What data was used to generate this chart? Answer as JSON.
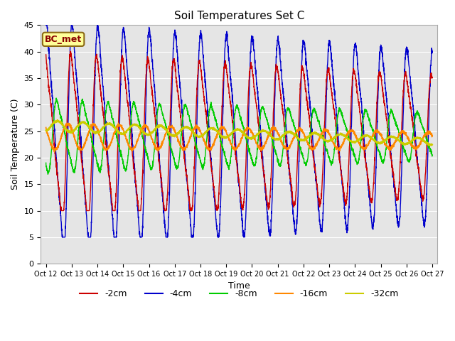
{
  "title": "Soil Temperatures Set C",
  "xlabel": "Time",
  "ylabel": "Soil Temperature (C)",
  "ylim": [
    0,
    45
  ],
  "background_color": "#ffffff",
  "plot_bg_color": "#e5e5e5",
  "label_box_text": "BC_met",
  "label_box_color": "#ffff99",
  "label_box_edge": "#8B6914",
  "series": {
    "-2cm": {
      "color": "#cc0000",
      "lw": 1.0
    },
    "-4cm": {
      "color": "#0000cc",
      "lw": 1.0
    },
    "-8cm": {
      "color": "#00cc00",
      "lw": 1.0
    },
    "-16cm": {
      "color": "#ff8800",
      "lw": 1.2
    },
    "-32cm": {
      "color": "#cccc00",
      "lw": 1.5
    }
  },
  "xtick_labels": [
    "Oct 12",
    "Oct 13",
    "Oct 14",
    "Oct 15",
    "Oct 16",
    "Oct 17",
    "Oct 18",
    "Oct 19",
    "Oct 20",
    "Oct 21",
    "Oct 22",
    "Oct 23",
    "Oct 24",
    "Oct 25",
    "Oct 26",
    "Oct 27"
  ],
  "grid_color": "#ffffff",
  "yticks": [
    0,
    5,
    10,
    15,
    20,
    25,
    30,
    35,
    40,
    45
  ]
}
